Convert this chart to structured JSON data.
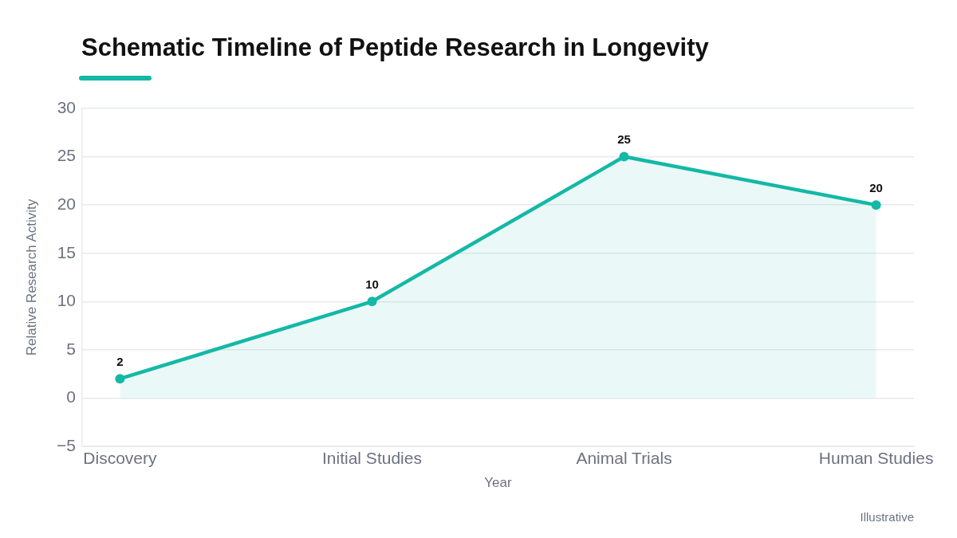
{
  "chart_data": {
    "type": "area",
    "title": "Schematic Timeline of Peptide Research in Longevity",
    "categories": [
      "Discovery",
      "Initial Studies",
      "Animal Trials",
      "Human Studies"
    ],
    "series": [
      {
        "color": "#14b8a6",
        "values": [
          2,
          10,
          25,
          20
        ]
      }
    ],
    "xlabel": "Year",
    "ylabel": "Relative Research Activity",
    "ylim": [
      -5,
      30
    ],
    "yticks": [
      {
        "value": -5,
        "label": "−5"
      },
      0,
      5,
      10,
      15,
      20,
      25,
      30
    ],
    "grid": "y",
    "data_labels": true,
    "marker": "circle",
    "annotations": [
      "Illustrative"
    ]
  }
}
